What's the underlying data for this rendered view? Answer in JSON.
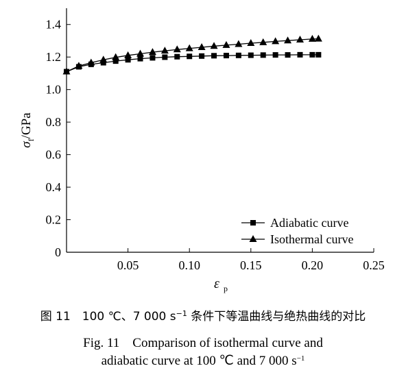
{
  "chart_data": {
    "type": "line",
    "xlabel": "ε",
    "xlabel_sub": "p",
    "ylabel": "σ",
    "ylabel_sub": "f",
    "ylabel_unit": "/GPa",
    "xlim": [
      0,
      0.25
    ],
    "ylim": [
      0,
      1.5
    ],
    "x_ticks": [
      0.05,
      0.1,
      0.15,
      0.2,
      0.25
    ],
    "x_tick_labels": [
      "0.05",
      "0.10",
      "0.15",
      "0.20",
      "0.25"
    ],
    "y_ticks": [
      0,
      0.2,
      0.4,
      0.6,
      0.8,
      1.0,
      1.2,
      1.4
    ],
    "y_tick_labels": [
      "0",
      "0.2",
      "0.4",
      "0.6",
      "0.8",
      "1.0",
      "1.2",
      "1.4"
    ],
    "grid": false,
    "legend_position": "bottom-right",
    "series": [
      {
        "name": "Adiabatic curve",
        "marker": "square",
        "color": "#000000",
        "x": [
          0.0,
          0.01,
          0.02,
          0.03,
          0.04,
          0.05,
          0.06,
          0.07,
          0.08,
          0.09,
          0.1,
          0.11,
          0.12,
          0.13,
          0.14,
          0.15,
          0.16,
          0.17,
          0.18,
          0.19,
          0.2,
          0.205
        ],
        "y": [
          1.11,
          1.14,
          1.155,
          1.165,
          1.175,
          1.183,
          1.19,
          1.195,
          1.199,
          1.202,
          1.204,
          1.206,
          1.208,
          1.209,
          1.21,
          1.211,
          1.212,
          1.213,
          1.213,
          1.214,
          1.214,
          1.214
        ]
      },
      {
        "name": "Isothermal curve",
        "marker": "triangle",
        "color": "#000000",
        "x": [
          0.0,
          0.01,
          0.02,
          0.03,
          0.04,
          0.05,
          0.06,
          0.07,
          0.08,
          0.09,
          0.1,
          0.11,
          0.12,
          0.13,
          0.14,
          0.15,
          0.16,
          0.17,
          0.18,
          0.19,
          0.2,
          0.205
        ],
        "y": [
          1.11,
          1.145,
          1.165,
          1.183,
          1.198,
          1.21,
          1.22,
          1.23,
          1.238,
          1.246,
          1.253,
          1.26,
          1.267,
          1.273,
          1.279,
          1.285,
          1.29,
          1.296,
          1.301,
          1.306,
          1.311,
          1.312
        ]
      }
    ]
  },
  "caption": {
    "cn": "图 11　100 ℃、7 000 s",
    "cn_sup": "−1",
    "cn_tail": " 条件下等温曲线与绝热曲线的对比",
    "en_line1": "Fig. 11　Comparison of isothermal curve and",
    "en_line2": "adiabatic curve at 100 ℃ and 7 000 s",
    "en_sup": "−1"
  }
}
